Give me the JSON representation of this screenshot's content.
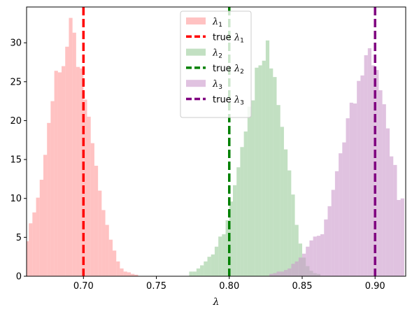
{
  "chart_data": {
    "type": "histogram",
    "title": "",
    "xlabel": "λ",
    "ylabel": "",
    "xlim": [
      0.661,
      0.921
    ],
    "ylim": [
      0,
      34.6
    ],
    "xticks": [
      0.7,
      0.75,
      0.8,
      0.85,
      0.9
    ],
    "xtick_labels": [
      "0.70",
      "0.75",
      "0.80",
      "0.85",
      "0.90"
    ],
    "yticks": [
      0,
      5,
      10,
      15,
      20,
      25,
      30
    ],
    "ytick_labels": [
      "0",
      "5",
      "10",
      "15",
      "20",
      "25",
      "30"
    ],
    "grid": false,
    "legend_placement": "top-center",
    "series": [
      {
        "name": "λ1",
        "legend_text": "λ",
        "legend_sub": "1",
        "color": "#ff9999",
        "bin_start": 0.66,
        "bin_width": 0.0025,
        "counts": [
          4.5,
          6.8,
          8.2,
          10.1,
          12.4,
          15.6,
          19.7,
          22.5,
          26.4,
          26.2,
          27.0,
          29.5,
          33.2,
          31.3,
          26.9,
          26.7,
          22.7,
          20.5,
          17.1,
          14.2,
          11.0,
          8.5,
          6.6,
          4.7,
          3.3,
          1.9,
          1.0,
          0.6,
          0.5,
          0.3,
          0.2
        ]
      },
      {
        "name": "true λ1",
        "legend_text": "true λ",
        "legend_sub": "1",
        "type": "vline",
        "x": 0.7,
        "color": "#ff0000"
      },
      {
        "name": "λ2",
        "legend_text": "λ",
        "legend_sub": "2",
        "color": "#99cc99",
        "bin_start": 0.7725,
        "bin_width": 0.0025,
        "counts": [
          0.6,
          0.6,
          1.0,
          1.4,
          1.9,
          2.5,
          2.8,
          3.8,
          5.1,
          5.4,
          7.2,
          9.6,
          11.7,
          14.0,
          16.6,
          18.6,
          21.8,
          22.6,
          26.8,
          27.1,
          27.7,
          30.3,
          26.7,
          25.6,
          22.0,
          19.2,
          16.3,
          13.6,
          10.5,
          6.6,
          4.2,
          2.4,
          1.3,
          0.7,
          0.4,
          0.3
        ]
      },
      {
        "name": "true λ2",
        "legend_text": "true λ",
        "legend_sub": "2",
        "type": "vline",
        "x": 0.8,
        "color": "#008000"
      },
      {
        "name": "λ3",
        "legend_text": "λ",
        "legend_sub": "3",
        "color": "#cc99cc",
        "bin_start": 0.8275,
        "bin_width": 0.0025,
        "counts": [
          0.3,
          0.4,
          0.6,
          0.6,
          0.8,
          1.0,
          1.6,
          1.9,
          2.4,
          2.9,
          3.8,
          4.6,
          5.1,
          5.2,
          5.4,
          7.3,
          9.0,
          11.1,
          13.5,
          15.8,
          17.2,
          20.3,
          22.3,
          22.2,
          25.1,
          25.8,
          28.4,
          29.3,
          27.1,
          26.5,
          23.9,
          22.1,
          19.0,
          15.4,
          14.3,
          9.8,
          10.0
        ]
      },
      {
        "name": "true λ3",
        "legend_text": "true λ",
        "legend_sub": "3",
        "type": "vline",
        "x": 0.9,
        "color": "#800080"
      }
    ]
  }
}
